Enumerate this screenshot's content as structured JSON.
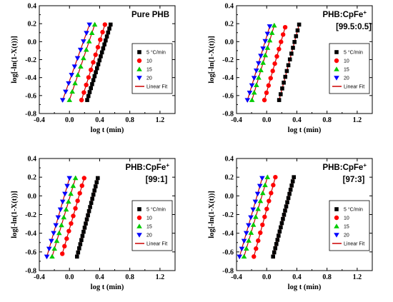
{
  "chart_data": [
    {
      "type": "scatter",
      "title": "Pure PHB",
      "subtitle": "",
      "xlabel": "log t (min)",
      "ylabel": "log[-ln(1-X(t))]",
      "xlim": [
        -0.4,
        1.4
      ],
      "ylim": [
        -0.8,
        0.4
      ],
      "xticks": [
        "-0.4",
        "0.0",
        "0.4",
        "0.8",
        "1.2"
      ],
      "yticks": [
        "-0.8",
        "-0.6",
        "-0.4",
        "-0.2",
        "0.0",
        "0.2",
        "0.4"
      ],
      "legend_placement": "right",
      "legend_title": "",
      "fit_label": "Linear Fit",
      "fit_color": "#cc0000",
      "series": [
        {
          "name": "5 °C/min",
          "marker": "square",
          "color": "#000000",
          "x_start": 0.235,
          "x_end": 0.545,
          "y_start": -0.65,
          "y_end": 0.19,
          "n": 20
        },
        {
          "name": "10",
          "marker": "circle",
          "color": "#ff0000",
          "x_start": 0.16,
          "x_end": 0.47,
          "y_start": -0.65,
          "y_end": 0.19,
          "n": 11
        },
        {
          "name": "15",
          "marker": "triangle-up",
          "color": "#00cc00",
          "x_start": 0.0,
          "x_end": 0.335,
          "y_start": -0.65,
          "y_end": 0.19,
          "n": 10
        },
        {
          "name": "20",
          "marker": "triangle-down",
          "color": "#0000ff",
          "x_start": -0.09,
          "x_end": 0.265,
          "y_start": -0.65,
          "y_end": 0.19,
          "n": 10
        }
      ]
    },
    {
      "type": "scatter",
      "title": "PHB:CpFe",
      "title_sup": "+",
      "subtitle": "[99.5:0.5]",
      "xlabel": "log t (min)",
      "ylabel": "log[-ln(1-X(t))]",
      "xlim": [
        -0.4,
        1.4
      ],
      "ylim": [
        -0.8,
        0.4
      ],
      "xticks": [
        "-0.4",
        "0.0",
        "0.4",
        "0.8",
        "1.2"
      ],
      "yticks": [
        "-0.8",
        "-0.6",
        "-0.4",
        "-0.2",
        "0.0",
        "0.2",
        "0.4"
      ],
      "legend_placement": "right",
      "legend_title": "",
      "fit_label": "Linear Fit",
      "fit_color": "#cc0000",
      "series": [
        {
          "name": "5 °C/min",
          "marker": "square",
          "color": "#000000",
          "x_start": 0.165,
          "x_end": 0.43,
          "y_start": -0.65,
          "y_end": 0.19,
          "n": 14
        },
        {
          "name": "10",
          "marker": "circle",
          "color": "#ff0000",
          "x_start": -0.03,
          "x_end": 0.245,
          "y_start": -0.65,
          "y_end": 0.16,
          "n": 11
        },
        {
          "name": "15",
          "marker": "triangle-up",
          "color": "#00cc00",
          "x_start": -0.195,
          "x_end": 0.1,
          "y_start": -0.65,
          "y_end": 0.18,
          "n": 11
        },
        {
          "name": "20",
          "marker": "triangle-down",
          "color": "#0000ff",
          "x_start": -0.255,
          "x_end": 0.04,
          "y_start": -0.65,
          "y_end": 0.17,
          "n": 11
        }
      ]
    },
    {
      "type": "scatter",
      "title": "PHB:CpFe",
      "title_sup": "+",
      "subtitle": "[99:1]",
      "xlabel": "log t (min)",
      "ylabel": "log[-ln(1-X(t))]",
      "xlim": [
        -0.4,
        1.4
      ],
      "ylim": [
        -0.8,
        0.4
      ],
      "xticks": [
        "-0.4",
        "0.0",
        "0.4",
        "0.8",
        "1.2"
      ],
      "yticks": [
        "-0.8",
        "-0.6",
        "-0.4",
        "-0.2",
        "0.0",
        "0.2",
        "0.4"
      ],
      "legend_placement": "right",
      "legend_title": "",
      "fit_label": "Linear Fit",
      "fit_color": "#cc0000",
      "series": [
        {
          "name": "5 °C/min",
          "marker": "square",
          "color": "#000000",
          "x_start": 0.1,
          "x_end": 0.375,
          "y_start": -0.65,
          "y_end": 0.19,
          "n": 20
        },
        {
          "name": "10",
          "marker": "circle",
          "color": "#ff0000",
          "x_start": -0.095,
          "x_end": 0.195,
          "y_start": -0.62,
          "y_end": 0.19,
          "n": 11
        },
        {
          "name": "15",
          "marker": "triangle-up",
          "color": "#00cc00",
          "x_start": -0.23,
          "x_end": 0.08,
          "y_start": -0.65,
          "y_end": 0.19,
          "n": 11
        },
        {
          "name": "20",
          "marker": "triangle-down",
          "color": "#0000ff",
          "x_start": -0.3,
          "x_end": 0.0,
          "y_start": -0.65,
          "y_end": 0.19,
          "n": 11
        }
      ]
    },
    {
      "type": "scatter",
      "title": "PHB:CpFe",
      "title_sup": "+",
      "subtitle": "[97:3]",
      "xlabel": "log t (min)",
      "ylabel": "log[-ln(1-X(t))]",
      "xlim": [
        -0.4,
        1.4
      ],
      "ylim": [
        -0.8,
        0.4
      ],
      "xticks": [
        "-0.4",
        "0.0",
        "0.4",
        "0.8",
        "1.2"
      ],
      "yticks": [
        "-0.8",
        "-0.6",
        "-0.4",
        "-0.2",
        "0.0",
        "0.2",
        "0.4"
      ],
      "legend_placement": "right",
      "legend_title": "",
      "fit_label": "Linear Fit",
      "fit_color": "#cc0000",
      "series": [
        {
          "name": "5 °C/min",
          "marker": "square",
          "color": "#000000",
          "x_start": 0.085,
          "x_end": 0.36,
          "y_start": -0.65,
          "y_end": 0.2,
          "n": 20
        },
        {
          "name": "10",
          "marker": "circle",
          "color": "#ff0000",
          "x_start": -0.17,
          "x_end": 0.115,
          "y_start": -0.65,
          "y_end": 0.2,
          "n": 11
        },
        {
          "name": "15",
          "marker": "triangle-up",
          "color": "#00cc00",
          "x_start": -0.3,
          "x_end": 0.01,
          "y_start": -0.65,
          "y_end": 0.2,
          "n": 11
        },
        {
          "name": "20",
          "marker": "triangle-down",
          "color": "#0000ff",
          "x_start": -0.36,
          "x_end": -0.06,
          "y_start": -0.65,
          "y_end": 0.19,
          "n": 11
        }
      ]
    }
  ]
}
